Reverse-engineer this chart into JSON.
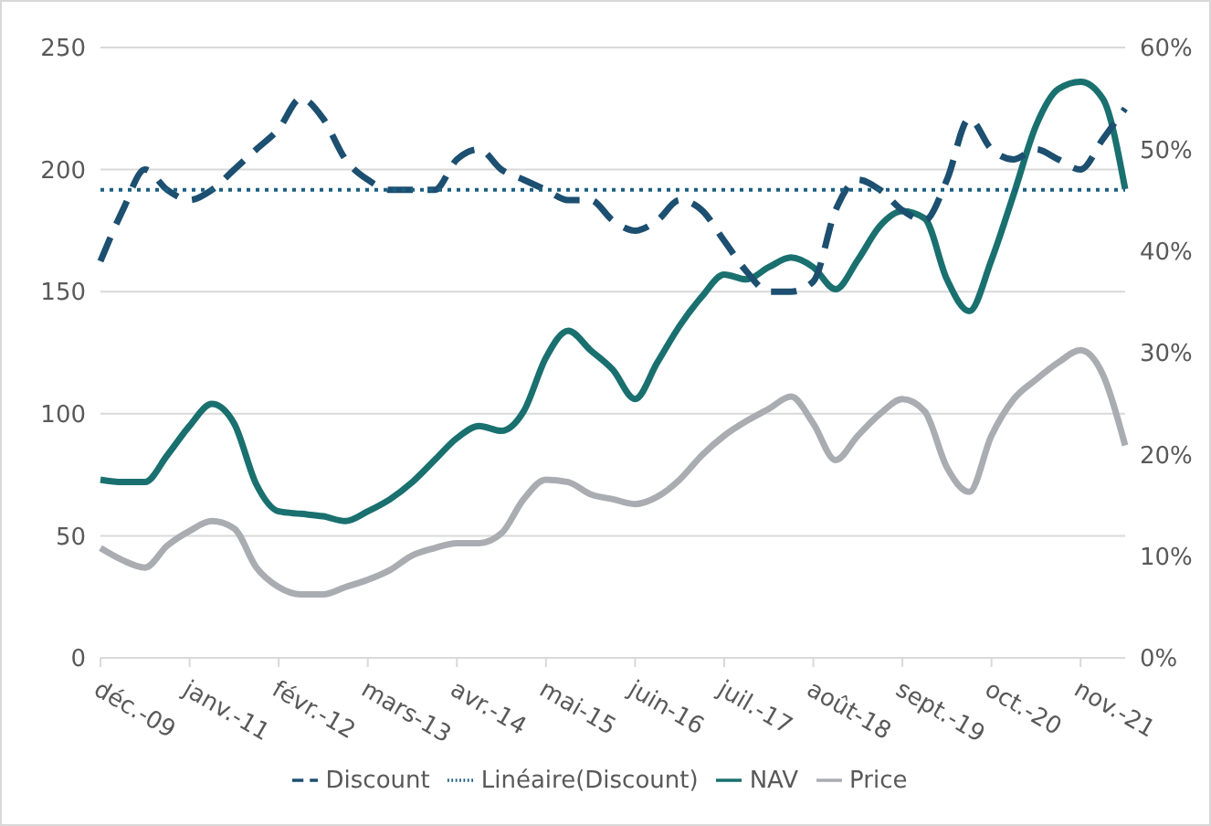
{
  "chart_data": {
    "type": "line",
    "categories": [
      "déc.-09",
      null,
      null,
      null,
      "janv.-11",
      null,
      null,
      null,
      "févr.-12",
      null,
      null,
      null,
      "mars-13",
      null,
      null,
      null,
      "avr.-14",
      null,
      null,
      null,
      "mai-15",
      null,
      null,
      null,
      "juin-16",
      null,
      null,
      null,
      "juil.-17",
      null,
      null,
      null,
      "août-18",
      null,
      null,
      null,
      "sept.-19",
      null,
      null,
      null,
      "oct.-20",
      null,
      null,
      null,
      "nov.-21",
      null,
      null
    ],
    "series": [
      {
        "name": "NAV",
        "color": "#19706f",
        "line_style": "solid",
        "values": [
          73,
          72,
          72,
          83,
          95,
          104,
          96,
          71,
          60,
          59,
          58,
          56,
          60,
          65,
          72,
          81,
          90,
          95,
          93,
          101,
          123,
          134,
          126,
          118,
          106,
          121,
          136,
          148,
          157,
          155,
          160,
          164,
          160,
          151,
          163,
          177,
          183,
          180,
          155,
          142,
          163,
          190,
          218,
          233,
          236,
          229,
          192
        ]
      },
      {
        "name": "Price",
        "color": "#a9adb2",
        "line_style": "solid",
        "values": [
          45,
          40,
          37,
          46,
          52,
          56,
          53,
          37,
          29,
          26,
          26,
          29,
          32,
          36,
          42,
          45,
          47,
          47,
          51,
          65,
          73,
          72,
          67,
          65,
          63,
          66,
          73,
          83,
          91,
          97,
          102,
          107,
          96,
          81,
          91,
          100,
          106,
          101,
          78,
          68,
          91,
          106,
          114,
          121,
          126,
          116,
          87
        ]
      },
      {
        "name": "Discount",
        "color": "#1c4f70",
        "line_style": "dashed",
        "axis": "y2",
        "values": [
          39,
          44,
          48,
          46,
          45,
          46,
          48,
          50,
          52,
          55,
          53,
          49,
          47,
          46,
          46,
          46,
          49,
          50,
          48,
          47,
          46,
          45,
          45,
          43,
          42,
          43,
          45,
          44,
          41,
          38,
          36,
          36,
          37,
          44,
          47,
          46,
          44,
          43,
          47,
          53,
          50,
          49,
          50,
          49,
          48,
          51,
          54
        ]
      },
      {
        "name": "Linéaire(Discount)",
        "color": "#1c5f80",
        "line_style": "dotted",
        "axis": "y2",
        "values": [
          46,
          46,
          46,
          46,
          46,
          46,
          46,
          46,
          46,
          46,
          46,
          46,
          46,
          46,
          46,
          46,
          46,
          46,
          46,
          46,
          46,
          46,
          46,
          46,
          46,
          46,
          46,
          46,
          46,
          46,
          46,
          46,
          46,
          46,
          46,
          46,
          46,
          46,
          46,
          46,
          46,
          46,
          46,
          46,
          46,
          46,
          46
        ]
      }
    ],
    "ylim": [
      0,
      250
    ],
    "yticks": [
      0,
      50,
      100,
      150,
      200,
      250
    ],
    "y2lim": [
      0,
      60
    ],
    "y2ticks": [
      {
        "value": 0,
        "label": "0%"
      },
      {
        "value": 10,
        "label": "10%"
      },
      {
        "value": 20,
        "label": "20%"
      },
      {
        "value": 30,
        "label": "30%"
      },
      {
        "value": 40,
        "label": "40%"
      },
      {
        "value": 50,
        "label": "50%"
      },
      {
        "value": 60,
        "label": "60%"
      }
    ],
    "grid": "y",
    "legend": "bottom"
  }
}
